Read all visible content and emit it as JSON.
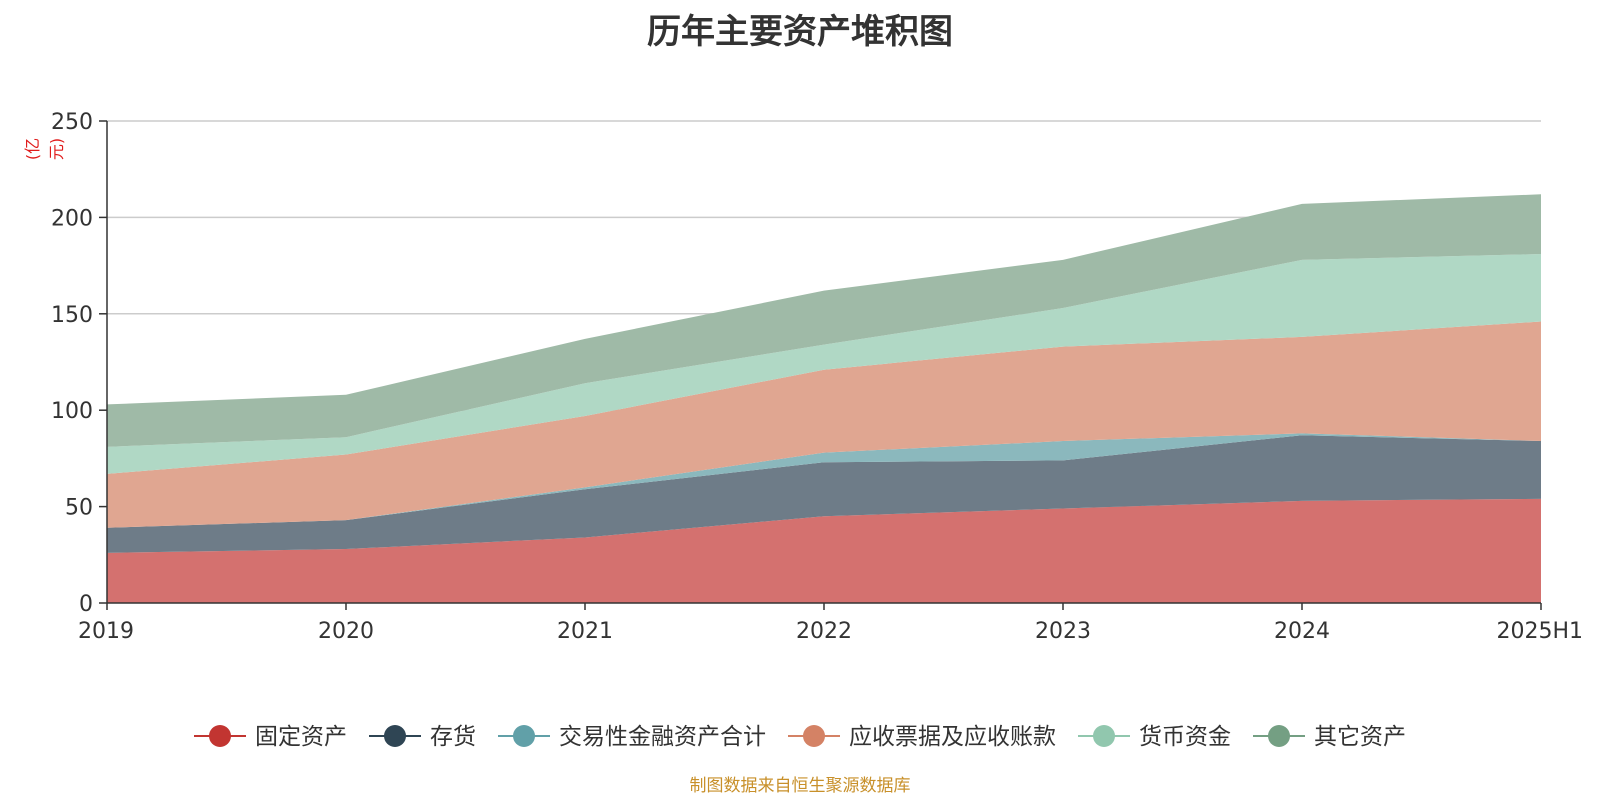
{
  "title": "历年主要资产堆积图",
  "unit_label": "(亿元)",
  "footer": "制图数据来自恒生聚源数据库",
  "chart_data": {
    "type": "area",
    "stacked": true,
    "categories": [
      "2019",
      "2020",
      "2021",
      "2022",
      "2023",
      "2024",
      "2025H1"
    ],
    "ylim": [
      0,
      250
    ],
    "yticks": [
      0,
      50,
      100,
      150,
      200,
      250
    ],
    "grid": true,
    "legend_position": "bottom",
    "series": [
      {
        "name": "固定资产",
        "color": "#d4716f",
        "line_color": "#c23531",
        "values": [
          26,
          28,
          34,
          45,
          49,
          53,
          54
        ]
      },
      {
        "name": "存货",
        "color": "#6e7c88",
        "line_color": "#2f4554",
        "values": [
          13,
          15,
          25,
          28,
          25,
          34,
          30
        ]
      },
      {
        "name": "交易性金融资产合计",
        "color": "#8bb8bd",
        "line_color": "#61a0a8",
        "values": [
          0,
          0,
          1,
          5,
          10,
          1,
          0
        ]
      },
      {
        "name": "应收票据及应收账款",
        "color": "#e0a691",
        "line_color": "#d48265",
        "values": [
          28,
          34,
          37,
          43,
          49,
          50,
          62
        ]
      },
      {
        "name": "货币资金",
        "color": "#b0d8c5",
        "line_color": "#91c7ae",
        "values": [
          14,
          9,
          17,
          13,
          20,
          40,
          35
        ]
      },
      {
        "name": "其它资产",
        "color": "#9fbaa7",
        "line_color": "#749f83",
        "values": [
          22,
          22,
          23,
          28,
          25,
          29,
          31
        ]
      }
    ]
  }
}
